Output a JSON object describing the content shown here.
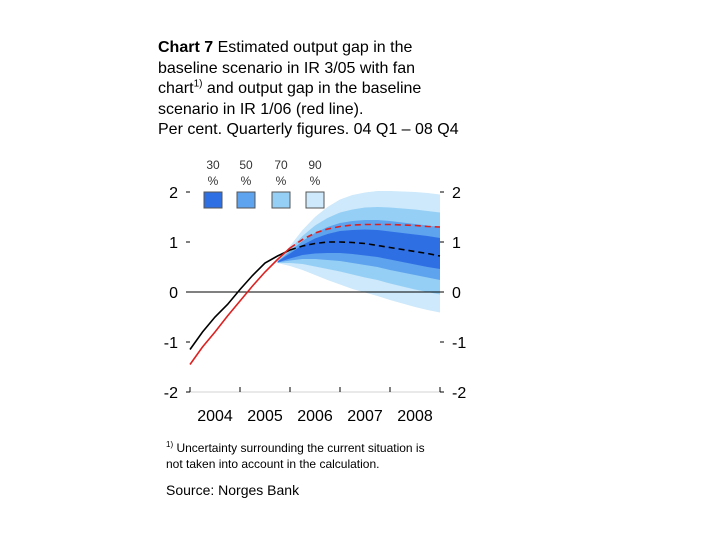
{
  "title": {
    "chart_number": "Chart 7",
    "line1_rest": " Estimated output gap in the",
    "line2": "baseline scenario in IR 3/05 with fan",
    "line3a": "chart",
    "line3sup": "1)",
    "line3b": " and output gap in the baseline",
    "line4": "scenario in IR 1/06 (red line).",
    "line5": "Per cent. Quarterly figures. 04 Q1 – 08 Q4"
  },
  "footnote": {
    "marker": "1)",
    "text1": " Uncertainty surrounding the current situation is",
    "text2": "not taken into account in the calculation."
  },
  "source": "Source: Norges Bank",
  "colors": {
    "band_90": "#cde9fb",
    "band_70": "#96cff5",
    "band_50": "#5ea3ee",
    "band_30": "#2f6fe4",
    "black_line": "#000000",
    "red_line": "#dd2020"
  },
  "chart_data": {
    "type": "line",
    "x_categories": [
      "2004",
      "2005",
      "2006",
      "2007",
      "2008"
    ],
    "xlim": [
      0,
      20
    ],
    "ylim": [
      -2,
      2
    ],
    "y_ticks": [
      "-2",
      "-1",
      "0",
      "1",
      "2"
    ],
    "legend": [
      {
        "label": "30 %",
        "color": "#2f6fe4"
      },
      {
        "label": "50 %",
        "color": "#5ea3ee"
      },
      {
        "label": "70 %",
        "color": "#96cff5"
      },
      {
        "label": "90 %",
        "color": "#cde9fb"
      }
    ],
    "fan_start_quarter": 7,
    "fan_center": [
      0.6,
      0.72,
      0.84,
      0.92,
      0.97,
      1.0,
      1.0,
      0.99,
      0.97,
      0.93,
      0.89,
      0.85,
      0.81,
      0.77
    ],
    "fan_half_widths": {
      "90": [
        0.02,
        0.2,
        0.4,
        0.58,
        0.73,
        0.85,
        0.94,
        1.0,
        1.05,
        1.09,
        1.12,
        1.15,
        1.17,
        1.18
      ],
      "70": [
        0.02,
        0.14,
        0.28,
        0.41,
        0.51,
        0.59,
        0.65,
        0.7,
        0.73,
        0.76,
        0.78,
        0.8,
        0.81,
        0.82
      ],
      "50": [
        0.01,
        0.09,
        0.18,
        0.26,
        0.33,
        0.38,
        0.42,
        0.45,
        0.47,
        0.49,
        0.5,
        0.51,
        0.52,
        0.53
      ],
      "30": [
        0.01,
        0.05,
        0.1,
        0.15,
        0.19,
        0.22,
        0.24,
        0.26,
        0.27,
        0.28,
        0.29,
        0.3,
        0.31,
        0.31
      ]
    },
    "series": [
      {
        "color": "#000000",
        "x": [
          0,
          1,
          2,
          3,
          4,
          5,
          6,
          7,
          8,
          9,
          10,
          11,
          12,
          13,
          14,
          15,
          16,
          17,
          18,
          19,
          20
        ],
        "y": [
          -1.15,
          -0.8,
          -0.5,
          -0.25,
          0.05,
          0.33,
          0.58,
          0.72,
          0.84,
          0.92,
          0.97,
          1.0,
          1.0,
          0.99,
          0.97,
          0.93,
          0.89,
          0.85,
          0.81,
          0.77,
          0.72
        ],
        "dashed_from_x": 8
      },
      {
        "color": "#dd2020",
        "x": [
          0,
          1,
          2,
          3,
          4,
          5,
          6,
          7,
          8,
          9,
          10,
          11,
          12,
          13,
          14,
          15,
          16,
          17,
          18,
          19,
          20
        ],
        "y": [
          -1.45,
          -1.1,
          -0.8,
          -0.48,
          -0.18,
          0.12,
          0.4,
          0.65,
          0.88,
          1.05,
          1.18,
          1.26,
          1.31,
          1.34,
          1.35,
          1.35,
          1.35,
          1.34,
          1.33,
          1.31,
          1.3
        ],
        "dashed_from_x": 8
      }
    ]
  }
}
